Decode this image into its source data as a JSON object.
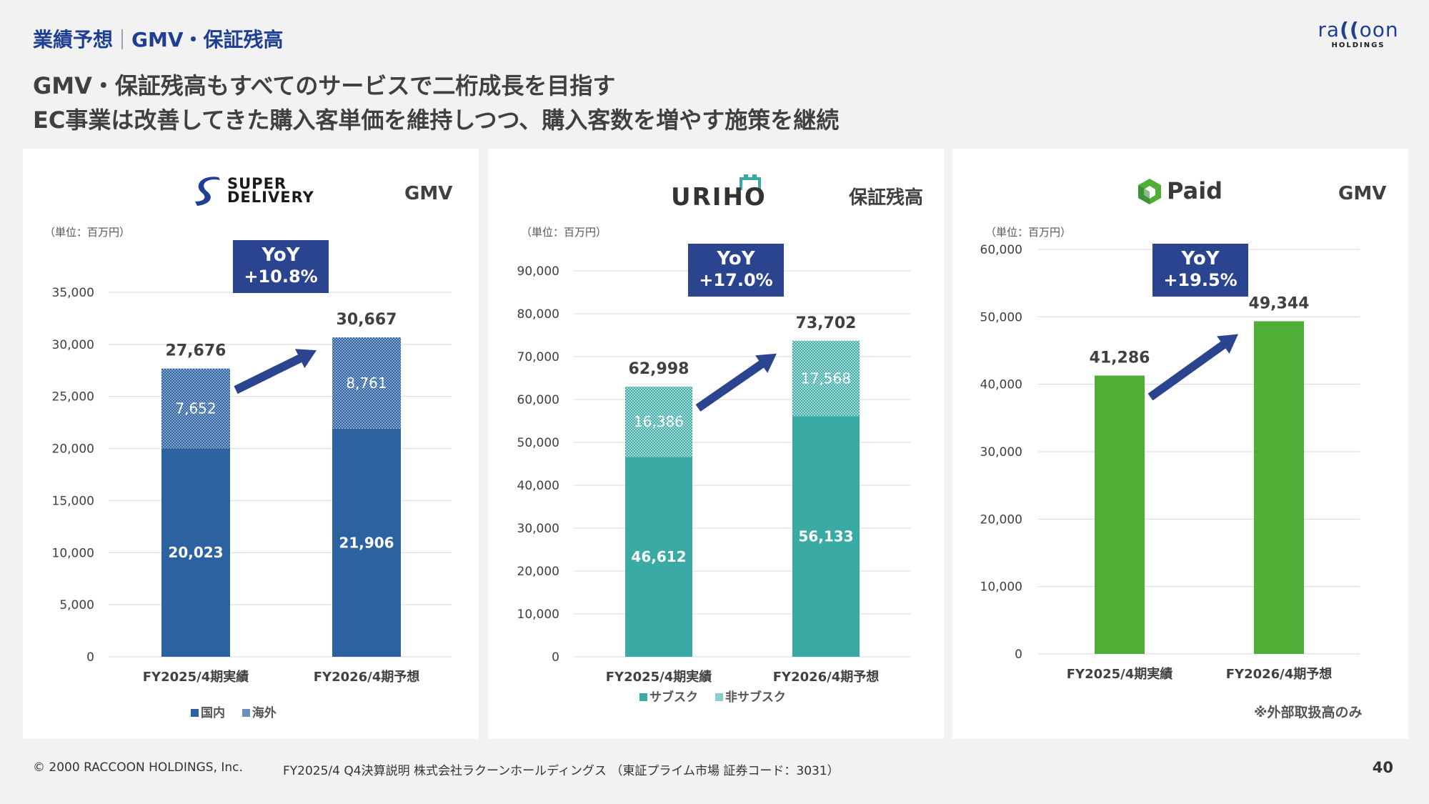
{
  "section": {
    "left": "業績予想",
    "right": "GMV・保証残高"
  },
  "logo": {
    "text_a": "ra",
    "text_paren": "((",
    "text_b": "oon",
    "sub": "HOLDINGS"
  },
  "headline": {
    "line1": "GMV・保証残高もすべてのサービスで二桁成長を目指す",
    "line2": "EC事業は改善してきた購入客単価を維持しつつ、購入客数を増やす施策を継続"
  },
  "colors": {
    "navy": "#2b4490",
    "sd": "#2c62a0",
    "uriho": "#3aaba4",
    "paid": "#4fae36",
    "grid": "#d9d9d9"
  },
  "panels": [
    {
      "brand": {
        "line1": "SUPER",
        "line2": "DELIVERY"
      },
      "metric": "GMV",
      "unit": "（単位：百万円）",
      "yoy": {
        "label": "YoY",
        "value": "+10.8%"
      },
      "legend": [
        "国内",
        "海外"
      ]
    },
    {
      "brand": {
        "name": "URIHO"
      },
      "metric": "保証残高",
      "unit": "（単位：百万円）",
      "yoy": {
        "label": "YoY",
        "value": "+17.0%"
      },
      "legend": [
        "サブスク",
        "非サブスク"
      ]
    },
    {
      "brand": {
        "name": "Paid"
      },
      "metric": "GMV",
      "unit": "（単位：百万円）",
      "yoy": {
        "label": "YoY",
        "value": "+19.5%"
      },
      "note": "※外部取扱高のみ"
    }
  ],
  "chart_data": [
    {
      "type": "bar",
      "stacked": true,
      "title": "SUPER DELIVERY GMV",
      "categories": [
        "FY2025/4期実績",
        "FY2026/4期予想"
      ],
      "series": [
        {
          "name": "国内",
          "values": [
            20023,
            21906
          ],
          "labels": [
            "20,023",
            "21,906"
          ]
        },
        {
          "name": "海外",
          "values": [
            7652,
            8761
          ],
          "labels": [
            "7,652",
            "8,761"
          ]
        }
      ],
      "totals": [
        27676,
        30667
      ],
      "total_labels": [
        "27,676",
        "30,667"
      ],
      "ylim": [
        0,
        35000
      ],
      "yticks": [
        0,
        5000,
        10000,
        15000,
        20000,
        25000,
        30000,
        35000
      ],
      "ytick_labels": [
        "0",
        "5,000",
        "10,000",
        "15,000",
        "20,000",
        "25,000",
        "30,000",
        "35,000"
      ]
    },
    {
      "type": "bar",
      "stacked": true,
      "title": "URIHO 保証残高",
      "categories": [
        "FY2025/4期実績",
        "FY2026/4期予想"
      ],
      "series": [
        {
          "name": "サブスク",
          "values": [
            46612,
            56133
          ],
          "labels": [
            "46,612",
            "56,133"
          ]
        },
        {
          "name": "非サブスク",
          "values": [
            16386,
            17568
          ],
          "labels": [
            "16,386",
            "17,568"
          ]
        }
      ],
      "totals": [
        62998,
        73702
      ],
      "total_labels": [
        "62,998",
        "73,702"
      ],
      "ylim": [
        0,
        90000
      ],
      "yticks": [
        0,
        10000,
        20000,
        30000,
        40000,
        50000,
        60000,
        70000,
        80000,
        90000
      ],
      "ytick_labels": [
        "0",
        "10,000",
        "20,000",
        "30,000",
        "40,000",
        "50,000",
        "60,000",
        "70,000",
        "80,000",
        "90,000"
      ]
    },
    {
      "type": "bar",
      "stacked": false,
      "title": "Paid GMV",
      "categories": [
        "FY2025/4期実績",
        "FY2026/4期予想"
      ],
      "series": [
        {
          "name": "GMV",
          "values": [
            41286,
            49344
          ],
          "labels": [
            "41,286",
            "49,344"
          ]
        }
      ],
      "totals": [
        41286,
        49344
      ],
      "total_labels": [
        "41,286",
        "49,344"
      ],
      "ylim": [
        0,
        60000
      ],
      "yticks": [
        0,
        10000,
        20000,
        30000,
        40000,
        50000,
        60000
      ],
      "ytick_labels": [
        "0",
        "10,000",
        "20,000",
        "30,000",
        "40,000",
        "50,000",
        "60,000"
      ]
    }
  ],
  "footer": {
    "copyright": "© 2000 RACCOON HOLDINGS, Inc.",
    "doc": "FY2025/4 Q4決算説明 株式会社ラクーンホールディングス （東証プライム市場 証券コード：3031）",
    "page": "40"
  }
}
